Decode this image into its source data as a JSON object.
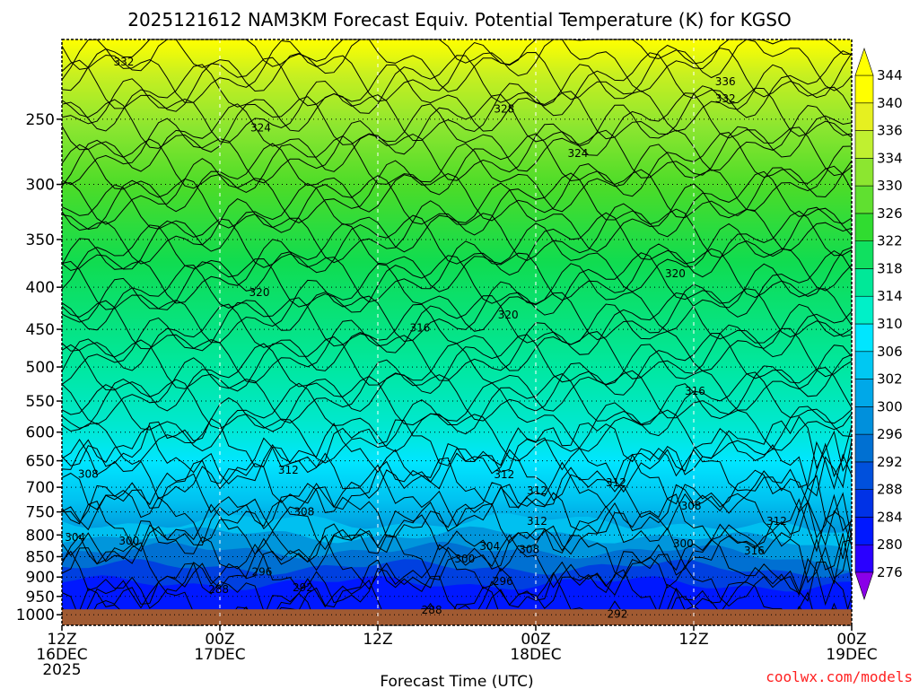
{
  "chart_data": {
    "type": "contour",
    "title": "2025121612 NAM3KM Forecast Equiv. Potential Temperature (K) for KGSO",
    "xlabel": "Forecast Time (UTC)",
    "ylabel": "",
    "x_ticks": [
      {
        "hour": 0,
        "line1": "12Z",
        "line2": "16DEC",
        "line3": "2025"
      },
      {
        "hour": 12,
        "line1": "00Z",
        "line2": "17DEC",
        "line3": ""
      },
      {
        "hour": 24,
        "line1": "12Z",
        "line2": "",
        "line3": ""
      },
      {
        "hour": 36,
        "line1": "00Z",
        "line2": "18DEC",
        "line3": ""
      },
      {
        "hour": 48,
        "line1": "12Z",
        "line2": "",
        "line3": ""
      },
      {
        "hour": 60,
        "line1": "00Z",
        "line2": "19DEC",
        "line3": ""
      }
    ],
    "xlim": [
      0,
      60
    ],
    "y_scale": "log-pressure",
    "ylim": [
      1030,
      200
    ],
    "y_ticks": [
      250,
      300,
      350,
      400,
      450,
      500,
      550,
      600,
      650,
      700,
      750,
      800,
      850,
      900,
      950,
      1000
    ],
    "colorbar_levels": [
      276,
      280,
      284,
      288,
      292,
      296,
      300,
      302,
      306,
      310,
      314,
      318,
      322,
      326,
      330,
      334,
      336,
      340,
      344
    ],
    "colorbar_colors": [
      "#8a00e8",
      "#2a00ff",
      "#0018ff",
      "#0032e6",
      "#0050dc",
      "#0070d2",
      "#0090dc",
      "#00a8e8",
      "#00c8f2",
      "#00e6ff",
      "#00f0c8",
      "#00e898",
      "#10e060",
      "#30dc30",
      "#60e030",
      "#8ce630",
      "#c0f030",
      "#e6f020",
      "#ffff00"
    ],
    "surface_color": "#a05a32",
    "contour_labels": [
      {
        "text": "332",
        "x": 4.7,
        "p": 213
      },
      {
        "text": "336",
        "x": 50.4,
        "p": 225
      },
      {
        "text": "332",
        "x": 50.4,
        "p": 236
      },
      {
        "text": "328",
        "x": 33.6,
        "p": 243
      },
      {
        "text": "324",
        "x": 15.1,
        "p": 256
      },
      {
        "text": "324",
        "x": 39.2,
        "p": 275
      },
      {
        "text": "320",
        "x": 46.6,
        "p": 385
      },
      {
        "text": "320",
        "x": 15.0,
        "p": 406
      },
      {
        "text": "320",
        "x": 33.9,
        "p": 432
      },
      {
        "text": "316",
        "x": 27.2,
        "p": 448
      },
      {
        "text": "316",
        "x": 48.1,
        "p": 535
      },
      {
        "text": "312",
        "x": 17.2,
        "p": 667
      },
      {
        "text": "308",
        "x": 2.0,
        "p": 675
      },
      {
        "text": "312",
        "x": 33.6,
        "p": 676
      },
      {
        "text": "312",
        "x": 42.1,
        "p": 691
      },
      {
        "text": "312",
        "x": 36.1,
        "p": 707
      },
      {
        "text": "308",
        "x": 47.8,
        "p": 738
      },
      {
        "text": "308",
        "x": 18.4,
        "p": 750
      },
      {
        "text": "312",
        "x": 36.1,
        "p": 770
      },
      {
        "text": "312",
        "x": 54.3,
        "p": 770
      },
      {
        "text": "304",
        "x": 1.0,
        "p": 805
      },
      {
        "text": "300",
        "x": 5.1,
        "p": 814
      },
      {
        "text": "304",
        "x": 32.5,
        "p": 826
      },
      {
        "text": "308",
        "x": 35.5,
        "p": 833
      },
      {
        "text": "300",
        "x": 47.2,
        "p": 820
      },
      {
        "text": "316",
        "x": 52.6,
        "p": 836
      },
      {
        "text": "300",
        "x": 30.6,
        "p": 855
      },
      {
        "text": "296",
        "x": 15.2,
        "p": 887
      },
      {
        "text": "296",
        "x": 33.5,
        "p": 911
      },
      {
        "text": "292",
        "x": 18.3,
        "p": 927
      },
      {
        "text": "288",
        "x": 11.9,
        "p": 932
      },
      {
        "text": "288",
        "x": 28.1,
        "p": 987
      },
      {
        "text": "292",
        "x": 42.2,
        "p": 998
      }
    ]
  },
  "credit": "coolwx.com/models"
}
